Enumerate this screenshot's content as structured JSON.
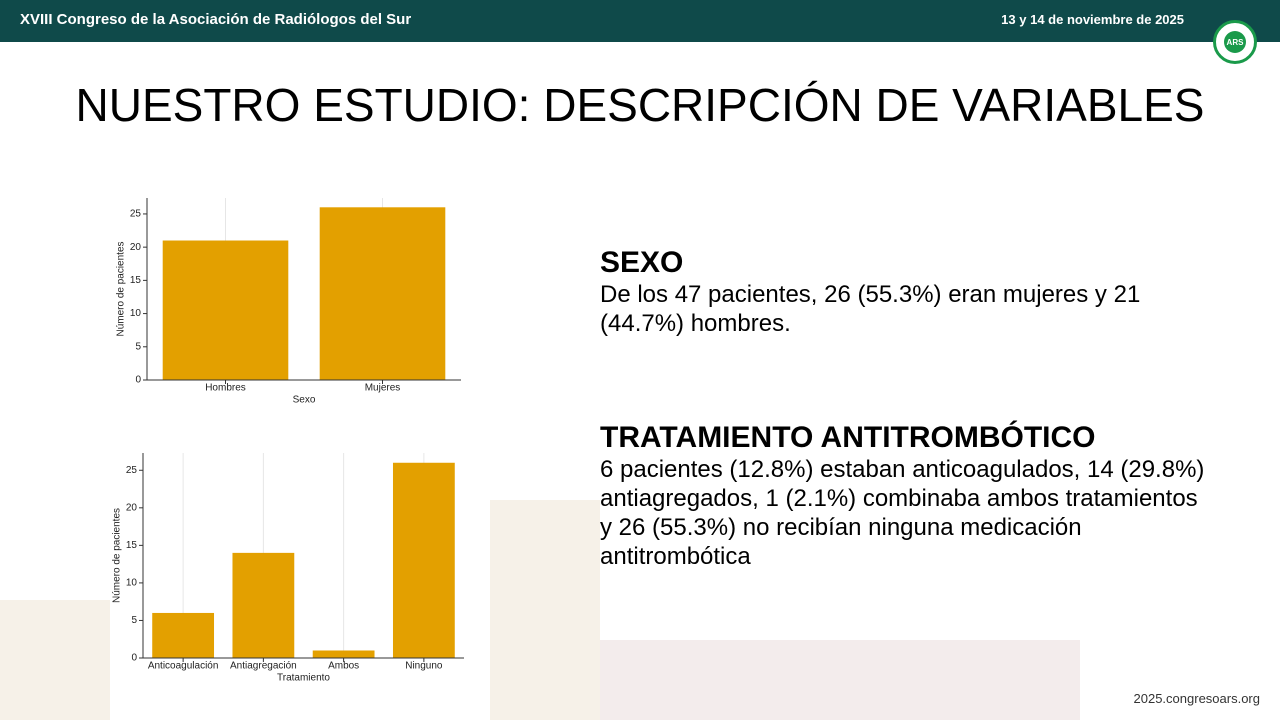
{
  "header": {
    "congress": "XVIII Congreso de la Asociación de Radiólogos del Sur",
    "date": "13 y 14 de noviembre de 2025",
    "logo": "ARS"
  },
  "title": "NUESTRO ESTUDIO: DESCRIPCIÓN DE VARIABLES",
  "sections": [
    {
      "heading": "SEXO",
      "body": "De los 47 pacientes, 26 (55.3%) eran mujeres y 21 (44.7%) hombres."
    },
    {
      "heading": "TRATAMIENTO ANTITROMBÓTICO",
      "body": "6 pacientes (12.8%) estaban anticoagulados, 14 (29.8%) antiagregados, 1 (2.1%) combinaba ambos tratamientos y 26 (55.3%) no recibían ninguna medicación antitrombótica"
    }
  ],
  "chart_data": [
    {
      "type": "bar",
      "categories": [
        "Hombres",
        "Mujeres"
      ],
      "values": [
        21,
        26
      ],
      "color": "#e3a000",
      "xlabel": "Sexo",
      "ylabel": "Número de pacientes",
      "ylim": [
        0,
        27.4
      ],
      "yticks": [
        0,
        5,
        10,
        15,
        20,
        25
      ]
    },
    {
      "type": "bar",
      "categories": [
        "Anticoagulación",
        "Antiagregación",
        "Ambos",
        "Ninguno"
      ],
      "values": [
        6,
        14,
        1,
        26
      ],
      "color": "#e3a000",
      "xlabel": "Tratamiento",
      "ylabel": "Número de pacientes",
      "ylim": [
        0,
        27.3
      ],
      "yticks": [
        0,
        5,
        10,
        15,
        20,
        25
      ]
    }
  ],
  "footer": "2025.congresoars.org"
}
